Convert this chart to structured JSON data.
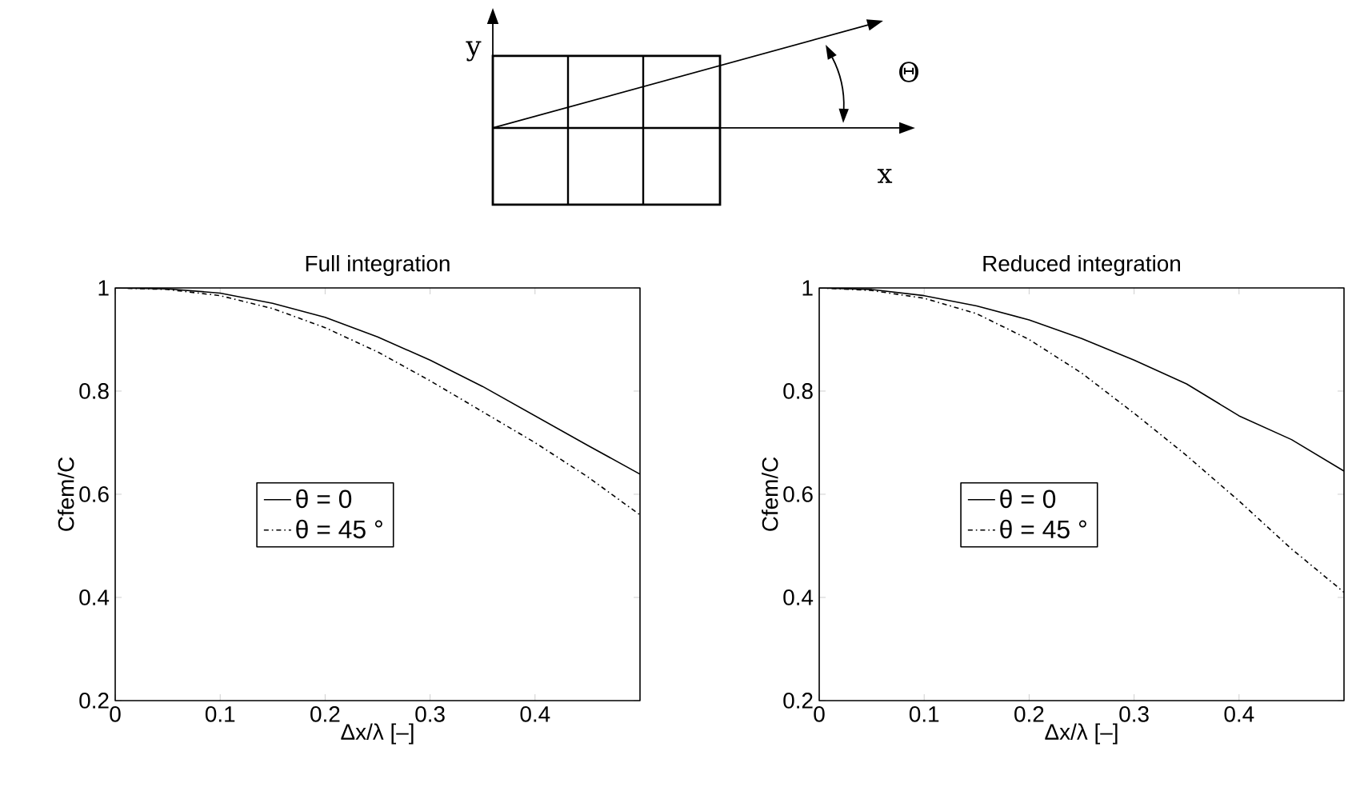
{
  "chart_data": [
    {
      "type": "other",
      "annotations": [
        "y",
        "x",
        "Θ"
      ]
    },
    {
      "type": "line",
      "title": "Full integration",
      "xlabel": "Δx/λ [–]",
      "ylabel": "Cfem/C",
      "x": [
        0,
        0.05,
        0.1,
        0.15,
        0.2,
        0.25,
        0.3,
        0.35,
        0.4,
        0.45,
        0.5
      ],
      "series": [
        {
          "name": "θ = 0",
          "color": "#000000",
          "line_style": "solid",
          "values": [
            1,
            0.998,
            0.99,
            0.97,
            0.943,
            0.905,
            0.86,
            0.809,
            0.752,
            0.695,
            0.639
          ]
        },
        {
          "name": "θ = 45 °",
          "color": "#000000",
          "line_style": "dashdot",
          "values": [
            1,
            0.997,
            0.985,
            0.96,
            0.923,
            0.876,
            0.82,
            0.76,
            0.7,
            0.634,
            0.56
          ]
        }
      ],
      "xlim": [
        0,
        0.5
      ],
      "ylim": [
        0.2,
        1
      ],
      "xticks": [
        0,
        0.1,
        0.2,
        0.3,
        0.4
      ],
      "yticks": [
        0.2,
        0.4,
        0.6,
        0.8,
        1
      ],
      "legend": "center",
      "marker": "none"
    },
    {
      "type": "line",
      "title": "Reduced integration",
      "xlabel": "Δx/λ [–]",
      "ylabel": "Cfem/C",
      "x": [
        0,
        0.05,
        0.1,
        0.15,
        0.2,
        0.25,
        0.3,
        0.35,
        0.4,
        0.45,
        0.5
      ],
      "series": [
        {
          "name": "θ = 0",
          "color": "#000000",
          "line_style": "solid",
          "values": [
            1,
            0.997,
            0.985,
            0.965,
            0.938,
            0.902,
            0.86,
            0.814,
            0.752,
            0.706,
            0.645
          ]
        },
        {
          "name": "θ = 45 °",
          "color": "#000000",
          "line_style": "dashdot",
          "values": [
            1,
            0.995,
            0.98,
            0.95,
            0.9,
            0.835,
            0.757,
            0.675,
            0.587,
            0.494,
            0.41
          ]
        }
      ],
      "xlim": [
        0,
        0.5
      ],
      "ylim": [
        0.2,
        1
      ],
      "xticks": [
        0,
        0.1,
        0.2,
        0.3,
        0.4
      ],
      "yticks": [
        0.2,
        0.4,
        0.6,
        0.8,
        1
      ],
      "legend": "center",
      "marker": "none"
    }
  ]
}
